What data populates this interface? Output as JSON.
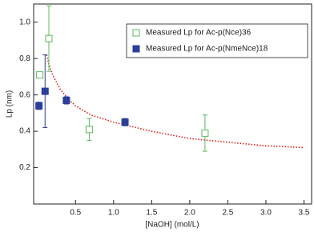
{
  "chart_data": {
    "type": "scatter",
    "xlabel": "[NaOH] (mol/L)",
    "ylabel": "Lp (nm)",
    "xlim": [
      -0.05,
      3.6
    ],
    "ylim": [
      0,
      1.1
    ],
    "xticks": [
      0.5,
      {
        "value": 1,
        "label": "1.0"
      },
      1.5,
      {
        "value": 2,
        "label": "2.0"
      },
      2.5,
      {
        "value": 3,
        "label": "3.0"
      },
      3.5
    ],
    "yticks": [
      0.2,
      0.4,
      0.6,
      0.8,
      {
        "value": 1,
        "label": "1.0"
      }
    ],
    "legend": "upper right",
    "series": [
      {
        "name": "Measured Lp for Ac-p(Nce)36",
        "color": "#5cb85c",
        "marker": "open-square",
        "x": [
          0.03,
          0.15,
          0.68,
          2.2
        ],
        "values": [
          0.71,
          0.91,
          0.41,
          0.39
        ],
        "errors": [
          0.01,
          0.18,
          0.06,
          0.1
        ]
      },
      {
        "name": "Measured Lp for Ac-p(NmeNce)18",
        "color": "#2b3f99",
        "marker": "filled-square",
        "x": [
          0.02,
          0.1,
          0.38,
          1.15
        ],
        "values": [
          0.54,
          0.62,
          0.57,
          0.45
        ],
        "errors": [
          0.02,
          0.2,
          0.02,
          0.02
        ]
      }
    ],
    "fit": {
      "color": "#e02020",
      "x": [
        0.12,
        0.15,
        0.2,
        0.3,
        0.4,
        0.5,
        0.7,
        1.0,
        1.5,
        2.0,
        2.5,
        3.0,
        3.5
      ],
      "values": [
        0.82,
        0.77,
        0.71,
        0.63,
        0.58,
        0.54,
        0.49,
        0.45,
        0.4,
        0.36,
        0.34,
        0.32,
        0.31
      ]
    }
  }
}
